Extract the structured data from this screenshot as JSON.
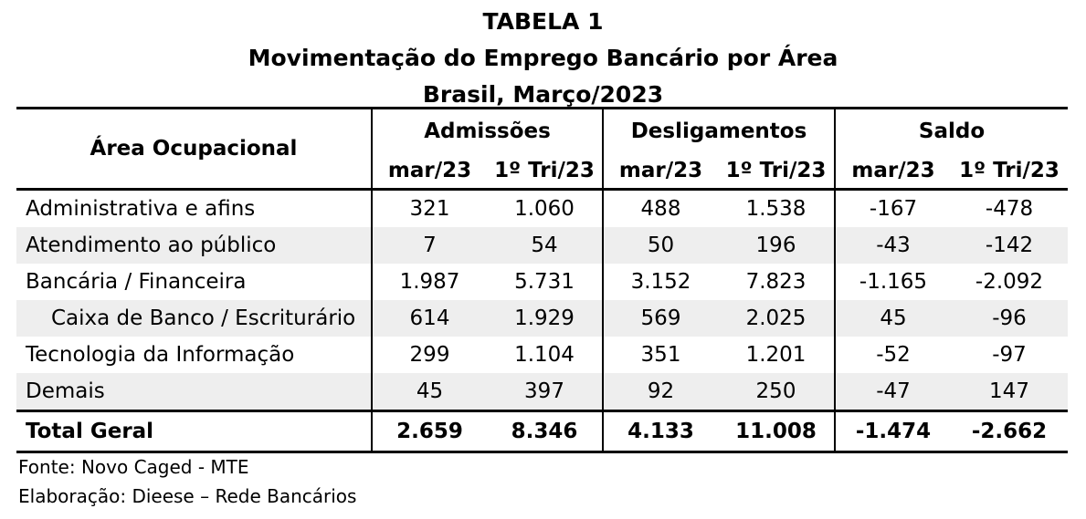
{
  "title": {
    "line1": "TABELA 1",
    "line2": "Movimentação do Emprego Bancário por Área",
    "line3": "Brasil, Março/2023"
  },
  "header": {
    "area": "Área Ocupacional",
    "groups": [
      "Admissões",
      "Desligamentos",
      "Saldo"
    ],
    "subcols": [
      "mar/23",
      "1º Tri/23",
      "mar/23",
      "1º Tri/23",
      "mar/23",
      "1º Tri/23"
    ]
  },
  "rows": [
    {
      "label": "Administrativa e afins",
      "values": [
        "321",
        "1.060",
        "488",
        "1.538",
        "-167",
        "-478"
      ]
    },
    {
      "label": "Atendimento ao público",
      "values": [
        "7",
        "54",
        "50",
        "196",
        "-43",
        "-142"
      ]
    },
    {
      "label": "Bancária / Financeira",
      "values": [
        "1.987",
        "5.731",
        "3.152",
        "7.823",
        "-1.165",
        "-2.092"
      ]
    },
    {
      "label": "Caixa de Banco / Escriturário",
      "values": [
        "614",
        "1.929",
        "569",
        "2.025",
        "45",
        "-96"
      ]
    },
    {
      "label": "Tecnologia da Informação",
      "values": [
        "299",
        "1.104",
        "351",
        "1.201",
        "-52",
        "-97"
      ]
    },
    {
      "label": "Demais",
      "values": [
        "45",
        "397",
        "92",
        "250",
        "-47",
        "147"
      ]
    }
  ],
  "total": {
    "label": "Total Geral",
    "values": [
      "2.659",
      "8.346",
      "4.133",
      "11.008",
      "-1.474",
      "-2.662"
    ]
  },
  "notes": {
    "source": "Fonte: Novo Caged - MTE",
    "author": "Elaboração: Dieese – Rede Bancários"
  }
}
